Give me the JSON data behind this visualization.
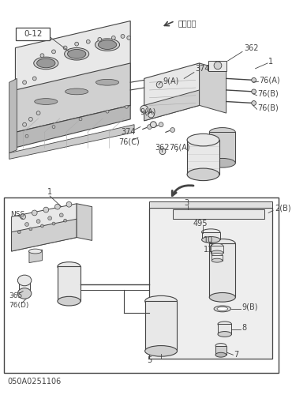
{
  "background_color": "#ffffff",
  "part_number": "050A0251106",
  "front_label": "フロント",
  "box_label": "0-12",
  "lc": "#444444",
  "fc_light": "#e8e8e8",
  "fc_mid": "#d0d0d0",
  "fc_dark": "#b8b8b8",
  "fc_darker": "#999999"
}
